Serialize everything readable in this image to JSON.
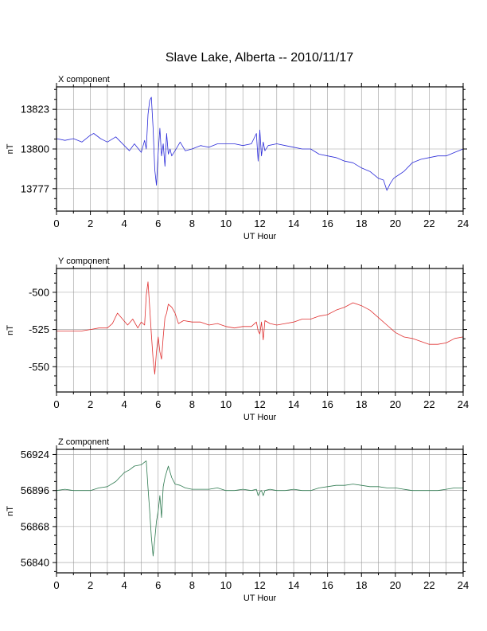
{
  "title": "Slave Lake, Alberta -- 2010/11/17",
  "x_axis_label": "UT Hour",
  "chart_data": [
    {
      "type": "line",
      "panel_title": "X component",
      "ylabel": "nT",
      "xlabel": "UT Hour",
      "xlim": [
        0,
        24
      ],
      "ylim": [
        13764,
        13836
      ],
      "x_ticks": [
        0,
        2,
        4,
        6,
        8,
        10,
        12,
        14,
        16,
        18,
        20,
        22,
        24
      ],
      "y_ticks": [
        13777,
        13800,
        13823
      ],
      "grid": true,
      "color": "#2b2bd9",
      "series": [
        {
          "x": [
            0,
            0.5,
            1,
            1.5,
            2,
            2.2,
            2.6,
            3,
            3.5,
            4,
            4.3,
            4.6,
            5.0,
            5.2,
            5.3,
            5.4,
            5.5,
            5.6,
            5.7,
            5.8,
            5.9,
            6.0,
            6.1,
            6.2,
            6.3,
            6.4,
            6.5,
            6.6,
            6.7,
            6.8,
            7.0,
            7.3,
            7.6,
            8,
            8.5,
            9,
            9.5,
            10,
            10.5,
            11,
            11.5,
            11.8,
            11.9,
            12.0,
            12.1,
            12.2,
            12.3,
            12.5,
            13,
            13.5,
            14,
            14.5,
            15,
            15.5,
            16,
            16.5,
            17,
            17.5,
            18,
            18.5,
            19,
            19.3,
            19.5,
            19.7,
            19.9,
            20.2,
            20.5,
            21,
            21.5,
            22,
            22.5,
            23,
            23.5,
            24
          ],
          "values": [
            13806,
            13805,
            13806,
            13804,
            13808,
            13809,
            13806,
            13804,
            13807,
            13802,
            13799,
            13803,
            13798,
            13805,
            13800,
            13820,
            13828,
            13830,
            13812,
            13788,
            13779,
            13798,
            13812,
            13796,
            13803,
            13790,
            13809,
            13797,
            13800,
            13796,
            13799,
            13804,
            13799,
            13800,
            13802,
            13801,
            13803,
            13803,
            13803,
            13802,
            13803,
            13809,
            13793,
            13811,
            13796,
            13804,
            13799,
            13802,
            13803,
            13802,
            13801,
            13800,
            13800,
            13797,
            13796,
            13795,
            13793,
            13792,
            13789,
            13787,
            13783,
            13782,
            13776,
            13780,
            13783,
            13785,
            13787,
            13792,
            13794,
            13795,
            13796,
            13796,
            13798,
            13800
          ]
        }
      ]
    },
    {
      "type": "line",
      "panel_title": "Y component",
      "ylabel": "nT",
      "xlabel": "UT Hour",
      "xlim": [
        0,
        24
      ],
      "ylim": [
        -567,
        -484
      ],
      "x_ticks": [
        0,
        2,
        4,
        6,
        8,
        10,
        12,
        14,
        16,
        18,
        20,
        22,
        24
      ],
      "y_ticks": [
        -550,
        -525,
        -500
      ],
      "grid": true,
      "color": "#e03030",
      "series": [
        {
          "x": [
            0,
            0.5,
            1,
            1.5,
            2,
            2.5,
            3,
            3.3,
            3.6,
            3.9,
            4.2,
            4.5,
            4.8,
            5.0,
            5.2,
            5.3,
            5.4,
            5.5,
            5.6,
            5.7,
            5.8,
            5.9,
            6.0,
            6.1,
            6.2,
            6.3,
            6.4,
            6.5,
            6.6,
            6.8,
            7.0,
            7.2,
            7.5,
            8,
            8.5,
            9,
            9.5,
            10,
            10.5,
            11,
            11.5,
            11.8,
            11.9,
            12.0,
            12.1,
            12.2,
            12.3,
            12.6,
            13,
            13.5,
            14,
            14.5,
            15,
            15.5,
            16,
            16.5,
            17,
            17.5,
            18,
            18.5,
            19,
            19.5,
            20,
            20.5,
            21,
            21.5,
            22,
            22.5,
            23,
            23.5,
            24
          ],
          "values": [
            -526,
            -526,
            -526,
            -526,
            -525,
            -524,
            -524,
            -521,
            -514,
            -518,
            -522,
            -518,
            -524,
            -520,
            -522,
            -502,
            -493,
            -510,
            -528,
            -545,
            -555,
            -540,
            -530,
            -540,
            -545,
            -530,
            -517,
            -514,
            -508,
            -510,
            -514,
            -521,
            -519,
            -520,
            -520,
            -522,
            -521,
            -523,
            -524,
            -523,
            -523,
            -520,
            -526,
            -528,
            -520,
            -532,
            -519,
            -521,
            -522,
            -521,
            -520,
            -518,
            -518,
            -516,
            -515,
            -512,
            -510,
            -507,
            -509,
            -512,
            -517,
            -522,
            -527,
            -530,
            -531,
            -533,
            -535,
            -535,
            -534,
            -531,
            -530
          ]
        }
      ]
    },
    {
      "type": "line",
      "panel_title": "Z component",
      "ylabel": "nT",
      "xlabel": "UT Hour",
      "xlim": [
        0,
        24
      ],
      "ylim": [
        56832,
        56928
      ],
      "x_ticks": [
        0,
        2,
        4,
        6,
        8,
        10,
        12,
        14,
        16,
        18,
        20,
        22,
        24
      ],
      "y_ticks": [
        56840,
        56868,
        56896,
        56924
      ],
      "grid": true,
      "color": "#2e7a50",
      "series": [
        {
          "x": [
            0,
            0.5,
            1,
            1.5,
            2,
            2.5,
            3,
            3.5,
            4,
            4.3,
            4.6,
            5.0,
            5.2,
            5.3,
            5.4,
            5.5,
            5.6,
            5.7,
            5.8,
            5.9,
            6.0,
            6.1,
            6.2,
            6.3,
            6.4,
            6.6,
            6.8,
            7.0,
            7.3,
            7.6,
            8,
            8.5,
            9,
            9.5,
            10,
            10.5,
            11,
            11.5,
            11.8,
            11.9,
            12.0,
            12.1,
            12.2,
            12.3,
            12.6,
            13,
            13.5,
            14,
            14.5,
            15,
            15.5,
            16,
            16.5,
            17,
            17.5,
            18,
            18.5,
            19,
            19.5,
            20,
            20.5,
            21,
            21.5,
            22,
            22.5,
            23,
            23.5,
            24
          ],
          "values": [
            56896,
            56897,
            56896,
            56896,
            56896,
            56898,
            56899,
            56903,
            56910,
            56912,
            56915,
            56916,
            56918,
            56919,
            56898,
            56880,
            56860,
            56845,
            56858,
            56872,
            56880,
            56892,
            56875,
            56899,
            56906,
            56915,
            56906,
            56901,
            56900,
            56898,
            56897,
            56897,
            56897,
            56898,
            56896,
            56896,
            56897,
            56896,
            56897,
            56892,
            56895,
            56896,
            56892,
            56896,
            56897,
            56896,
            56896,
            56897,
            56896,
            56896,
            56898,
            56899,
            56900,
            56900,
            56901,
            56900,
            56899,
            56899,
            56898,
            56898,
            56897,
            56896,
            56896,
            56896,
            56896,
            56897,
            56898,
            56898
          ]
        }
      ]
    }
  ]
}
